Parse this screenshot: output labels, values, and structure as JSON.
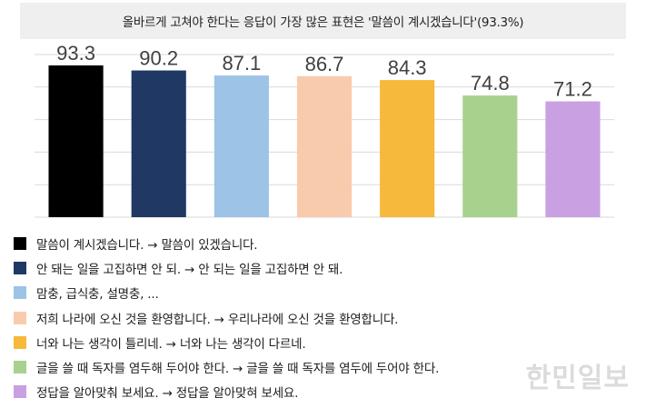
{
  "chart_data": {
    "type": "bar",
    "title": "올바르게 고쳐야 한다는 응답이 가장 많은 표현은 '말씀이 계시겠습니다'(93.3%)",
    "xlabel": "",
    "ylabel": "",
    "ylim": [
      0,
      100
    ],
    "grid": true,
    "legend_position": "bottom",
    "categories": [
      "말씀이 계시겠습니다. → 말씀이 있겠습니다.",
      "안 돼는 일을 고집하면 안 되. → 안 되는 일을 고집하면 안 돼.",
      "맘충, 급식충, 설명충, ...",
      "저희 나라에 오신 것을 환영합니다. → 우리나라에 오신 것을 환영합니다.",
      "너와 나는 생각이 틀리네. → 너와 나는 생각이 다르네.",
      "글을 쓸 때 독자를 염두해 두어야 한다. → 글을 쓸 때 독자를 염두에 두어야 한다.",
      "정답을 알아맞춰 보세요. → 정답을 알아맞혀 보세요."
    ],
    "values": [
      93.3,
      90.2,
      87.1,
      86.7,
      84.3,
      74.8,
      71.2
    ],
    "value_labels": [
      "93.3",
      "90.2",
      "87.1",
      "86.7",
      "84.3",
      "74.8",
      "71.2"
    ],
    "colors": [
      "#000000",
      "#1f3864",
      "#9dc3e6",
      "#f8cbad",
      "#f6b93b",
      "#a9d18e",
      "#c9a0e2"
    ]
  },
  "watermark": "한민일보"
}
